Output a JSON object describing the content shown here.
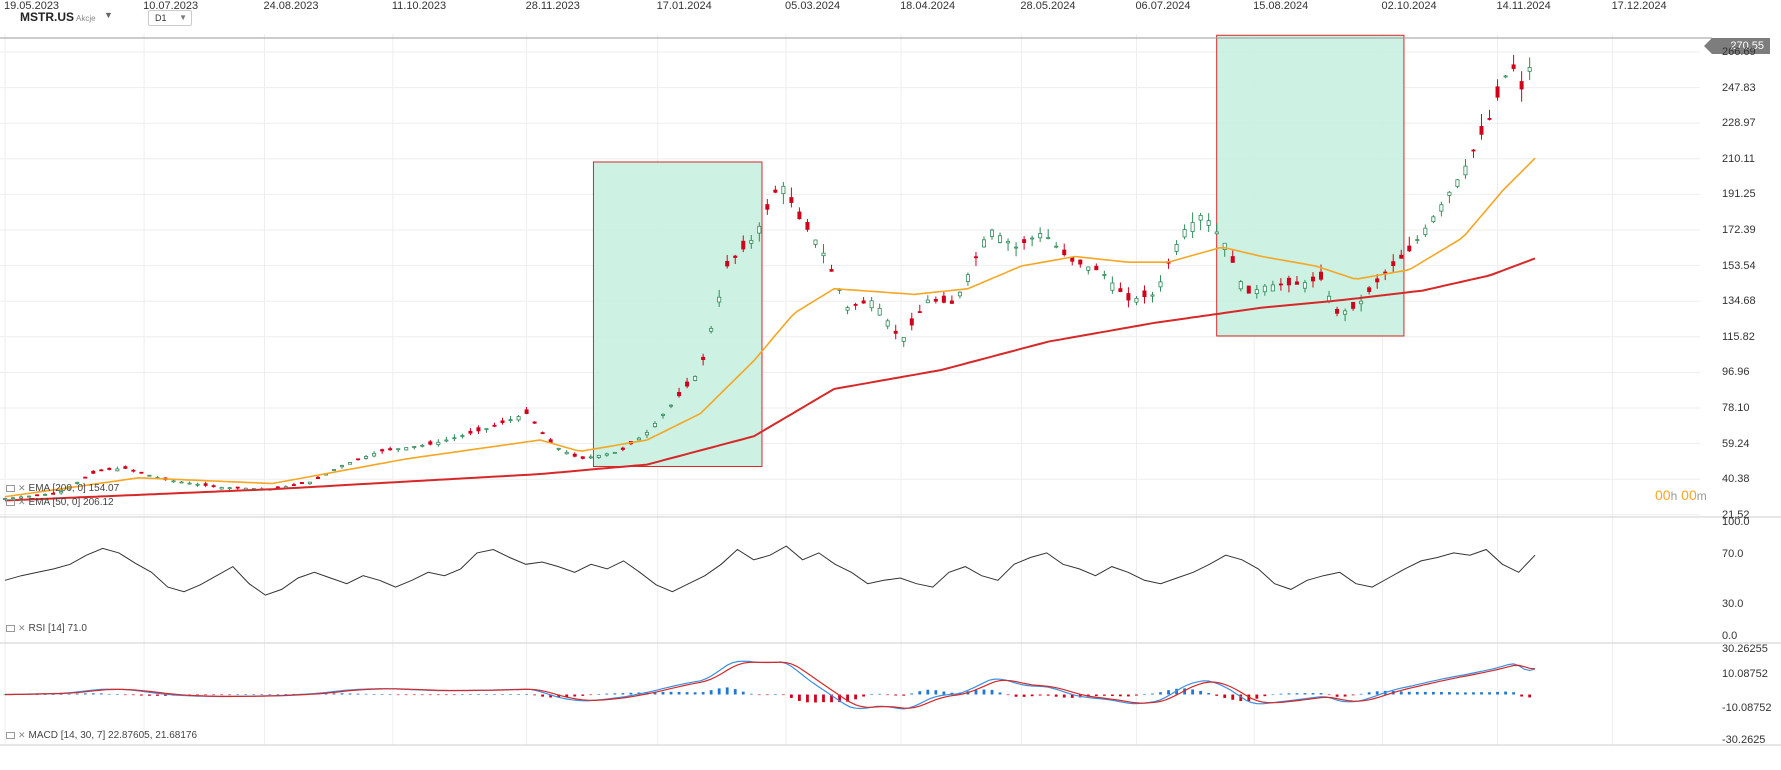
{
  "header": {
    "symbol": "MSTR.US",
    "symbol_type": "Akcje",
    "timeframe": "D1"
  },
  "price_tag": "270.55",
  "timer": {
    "h": "00",
    "h_unit": "h",
    "m": "00",
    "m_unit": "m"
  },
  "legends": {
    "ema200": "EMA [200, 0]  154.07",
    "ema50": "EMA [50, 0]  206.12",
    "rsi": "RSI [14]  71.0",
    "macd": "MACD [14, 30, 7]  22.87605,   21.68176"
  },
  "colors": {
    "up": "#2e8b57",
    "down": "#d0021b",
    "ema50": "#f5a623",
    "ema200": "#d62828",
    "highlight_fill": "#c8f0e0",
    "highlight_stroke": "#d62828",
    "rsi_line": "#333333",
    "macd_line": "#3b8fe0",
    "signal_line": "#d62828",
    "hist_pos": "#1f78d1",
    "hist_neg": "#d0021b"
  },
  "chart_data": [
    {
      "type": "candlestick",
      "name": "MSTR.US price",
      "y_ticks": [
        "266.69",
        "247.83",
        "228.97",
        "210.11",
        "191.25",
        "172.39",
        "153.54",
        "134.68",
        "115.82",
        "96.96",
        "78.10",
        "59.24",
        "40.38",
        "21.52"
      ],
      "x_ticks": [
        "19.05.2023",
        "10.07.2023",
        "24.08.2023",
        "11.10.2023",
        "28.11.2023",
        "17.01.2024",
        "05.03.2024",
        "18.04.2024",
        "28.05.2024",
        "06.07.2024",
        "15.08.2024",
        "02.10.2024",
        "14.11.2024",
        "17.12.2024"
      ],
      "ylim": [
        21.52,
        274
      ],
      "last_price": 270.55,
      "highlight_ranges": [
        {
          "from_day": 0.0,
          "to_day": 0.0
        }
      ],
      "anchors_close": [
        [
          0,
          27
        ],
        [
          20,
          30
        ],
        [
          35,
          42
        ],
        [
          45,
          43
        ],
        [
          60,
          37
        ],
        [
          80,
          33
        ],
        [
          100,
          32
        ],
        [
          115,
          36
        ],
        [
          125,
          44
        ],
        [
          140,
          52
        ],
        [
          160,
          56
        ],
        [
          180,
          64
        ],
        [
          195,
          72
        ],
        [
          205,
          55
        ],
        [
          215,
          48
        ],
        [
          230,
          52
        ],
        [
          240,
          62
        ],
        [
          250,
          78
        ],
        [
          260,
          95
        ],
        [
          270,
          150
        ],
        [
          280,
          165
        ],
        [
          290,
          195
        ],
        [
          297,
          175
        ],
        [
          305,
          160
        ],
        [
          315,
          128
        ],
        [
          325,
          132
        ],
        [
          335,
          110
        ],
        [
          345,
          132
        ],
        [
          355,
          130
        ],
        [
          368,
          170
        ],
        [
          378,
          160
        ],
        [
          388,
          168
        ],
        [
          398,
          153
        ],
        [
          410,
          147
        ],
        [
          420,
          132
        ],
        [
          430,
          135
        ],
        [
          440,
          168
        ],
        [
          448,
          178
        ],
        [
          456,
          162
        ],
        [
          464,
          135
        ],
        [
          472,
          140
        ],
        [
          482,
          140
        ],
        [
          492,
          143
        ],
        [
          498,
          125
        ],
        [
          505,
          128
        ],
        [
          515,
          145
        ],
        [
          525,
          158
        ],
        [
          535,
          178
        ],
        [
          545,
          200
        ],
        [
          555,
          228
        ],
        [
          563,
          258
        ],
        [
          568,
          240
        ],
        [
          572,
          270
        ]
      ],
      "ema50_anchors": [
        [
          0,
          28
        ],
        [
          50,
          38
        ],
        [
          100,
          35
        ],
        [
          150,
          48
        ],
        [
          200,
          58
        ],
        [
          215,
          52
        ],
        [
          240,
          58
        ],
        [
          260,
          72
        ],
        [
          280,
          100
        ],
        [
          295,
          125
        ],
        [
          310,
          138
        ],
        [
          340,
          135
        ],
        [
          360,
          138
        ],
        [
          380,
          150
        ],
        [
          400,
          155
        ],
        [
          420,
          152
        ],
        [
          435,
          152
        ],
        [
          455,
          160
        ],
        [
          470,
          155
        ],
        [
          490,
          150
        ],
        [
          505,
          143
        ],
        [
          525,
          148
        ],
        [
          545,
          165
        ],
        [
          560,
          190
        ],
        [
          572,
          207
        ]
      ],
      "ema200_anchors": [
        [
          0,
          26
        ],
        [
          100,
          32
        ],
        [
          200,
          40
        ],
        [
          240,
          45
        ],
        [
          280,
          60
        ],
        [
          310,
          85
        ],
        [
          350,
          95
        ],
        [
          390,
          110
        ],
        [
          430,
          120
        ],
        [
          470,
          128
        ],
        [
          500,
          132
        ],
        [
          530,
          137
        ],
        [
          555,
          145
        ],
        [
          572,
          154
        ]
      ]
    },
    {
      "type": "line",
      "name": "RSI",
      "ylim": [
        0,
        100
      ],
      "y_ticks": [
        "100.0",
        "70.0",
        "30.0",
        "0.0"
      ],
      "values": [
        48,
        52,
        55,
        58,
        62,
        70,
        76,
        72,
        63,
        55,
        42,
        38,
        44,
        52,
        60,
        45,
        35,
        40,
        50,
        55,
        50,
        45,
        52,
        48,
        42,
        48,
        55,
        52,
        58,
        72,
        75,
        68,
        62,
        64,
        60,
        55,
        62,
        58,
        65,
        55,
        44,
        38,
        45,
        52,
        62,
        75,
        66,
        70,
        78,
        66,
        72,
        62,
        55,
        45,
        48,
        50,
        45,
        42,
        55,
        60,
        52,
        48,
        62,
        68,
        72,
        62,
        58,
        52,
        60,
        55,
        48,
        45,
        50,
        55,
        62,
        70,
        66,
        58,
        45,
        40,
        48,
        52,
        55,
        45,
        42,
        50,
        58,
        65,
        68,
        72,
        70,
        75,
        62,
        55,
        70
      ]
    },
    {
      "type": "line",
      "name": "MACD",
      "ylim": [
        -30.2625,
        30.2625
      ],
      "y_ticks": [
        "30.26255",
        "10.08752",
        "-10.08752",
        "-30.2625"
      ]
    }
  ]
}
